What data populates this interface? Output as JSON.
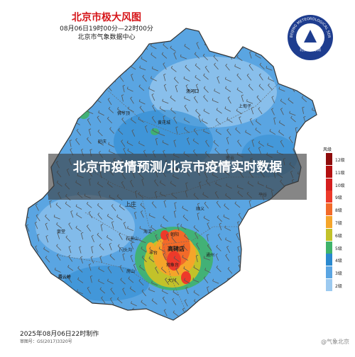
{
  "header": {
    "title": "北京市极大风图",
    "period": "08月06日19时00分—22时00分",
    "issuer": "北京市气象数据中心"
  },
  "footer": {
    "produced": "2025年08月06日22时制作",
    "approval": "审图号：GS(2017)3320号",
    "watermark": "@气象北京"
  },
  "overlay": {
    "headline": "北京市疫情预测/北京市疫情实时数据"
  },
  "logo": {
    "outer_text": "BEIJING METEOROLOGICAL SERVICE",
    "inner_text": "北京市气象局"
  },
  "legend": {
    "title": "风级",
    "levels": [
      {
        "label": "12级",
        "color": "#8e0c0c"
      },
      {
        "label": "11级",
        "color": "#b30f10"
      },
      {
        "label": "10级",
        "color": "#d41e1e"
      },
      {
        "label": "9级",
        "color": "#ed3a2a"
      },
      {
        "label": "8级",
        "color": "#f26a29"
      },
      {
        "label": "7级",
        "color": "#f5a52a"
      },
      {
        "label": "6级",
        "color": "#c2c22a"
      },
      {
        "label": "5级",
        "color": "#3fb36a"
      },
      {
        "label": "4级",
        "color": "#2a89cf"
      },
      {
        "label": "3级",
        "color": "#5aa5e2"
      },
      {
        "label": "2级",
        "color": "#9ccaf0"
      }
    ]
  },
  "places": [
    {
      "name": "汤河口",
      "kind": "small"
    },
    {
      "name": "延庆",
      "kind": "small"
    },
    {
      "name": "佛爷顶",
      "kind": "small"
    },
    {
      "name": "汤河口",
      "kind": "small"
    },
    {
      "name": "上甸子",
      "kind": "small"
    },
    {
      "name": "黄花城",
      "kind": "small"
    },
    {
      "name": "密云",
      "kind": "small"
    },
    {
      "name": "怀柔",
      "kind": "small"
    },
    {
      "name": "平谷",
      "kind": "small"
    },
    {
      "name": "上庄",
      "kind": "big"
    },
    {
      "name": "顺义",
      "kind": "small"
    },
    {
      "name": "斋堂",
      "kind": "small"
    },
    {
      "name": "霞云岭",
      "kind": "small"
    },
    {
      "name": "石景山",
      "kind": "small"
    },
    {
      "name": "海淀",
      "kind": "small"
    },
    {
      "name": "朝阳",
      "kind": "small"
    },
    {
      "name": "门头沟",
      "kind": "small"
    },
    {
      "name": "丰台",
      "kind": "small"
    },
    {
      "name": "高碑店",
      "kind": "bold"
    },
    {
      "name": "通州",
      "kind": "small"
    },
    {
      "name": "观象台",
      "kind": "small"
    },
    {
      "name": "房山",
      "kind": "small"
    },
    {
      "name": "大兴",
      "kind": "small"
    },
    {
      "name": "霞云岭",
      "kind": "small"
    }
  ]
}
